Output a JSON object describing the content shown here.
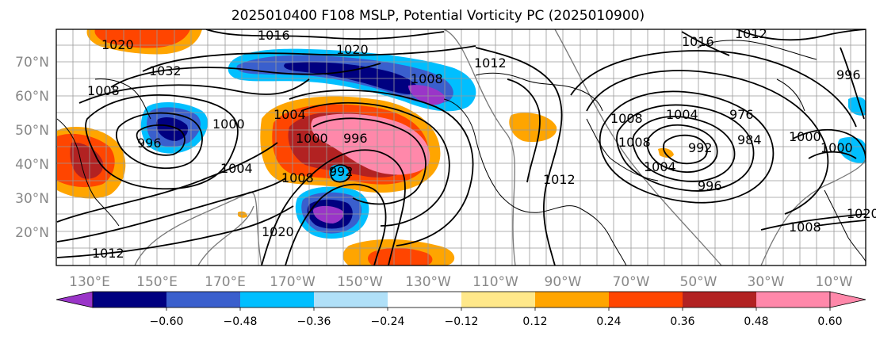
{
  "title": "2025010400 F108 MSLP, Potential Vorticity PC (2025010900)",
  "lat_labels": [
    "70°N",
    "60°N",
    "50°N",
    "40°N",
    "30°N",
    "20°N"
  ],
  "lon_labels": [
    "130°E",
    "150°E",
    "170°E",
    "170°W",
    "150°W",
    "130°W",
    "110°W",
    "90°W",
    "70°W",
    "50°W",
    "30°W",
    "10°W"
  ],
  "contour_labels": [
    "1016",
    "1020",
    "1020",
    "1032",
    "1004",
    "996",
    "1000",
    "1004",
    "1008",
    "1008",
    "1000",
    "996",
    "992",
    "1008",
    "1020",
    "1012",
    "1012",
    "1016",
    "1012",
    "1008",
    "1004",
    "992",
    "976",
    "984",
    "996",
    "1000",
    "1000",
    "996",
    "1008",
    "1020",
    "1012",
    "1008",
    "1004"
  ],
  "colorbar": {
    "ticks": [
      "−0.60",
      "−0.48",
      "−0.36",
      "−0.24",
      "−0.12",
      "0.12",
      "0.24",
      "0.36",
      "0.48",
      "0.60"
    ],
    "colors": [
      "#9a35c8",
      "#000080",
      "#3a5fcd",
      "#00bfff",
      "#b0e0f8",
      "#ffffff",
      "#ffe88a",
      "#ffa500",
      "#ff4500",
      "#b22222",
      "#ff88aa",
      "#ff88aa"
    ]
  }
}
